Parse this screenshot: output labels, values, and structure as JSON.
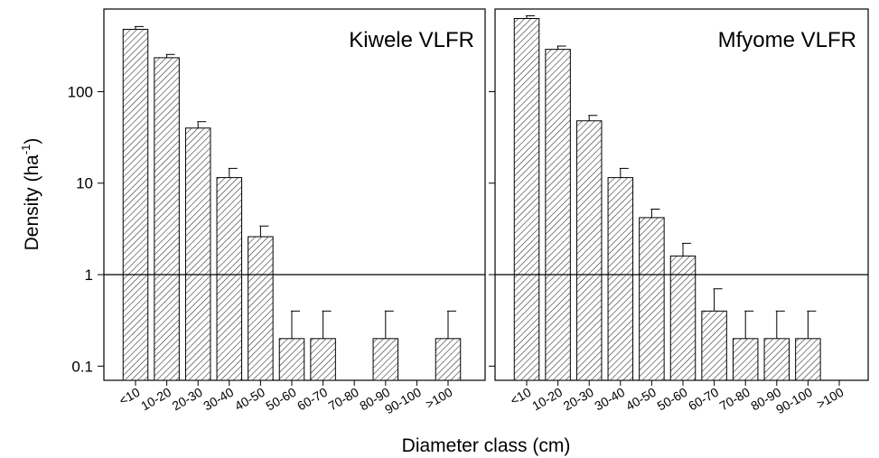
{
  "chart_data": {
    "type": "bar",
    "y_scale": "log",
    "ylim": [
      0.07,
      800
    ],
    "yticks": [
      {
        "value": 0.1,
        "label": "0.1"
      },
      {
        "value": 1,
        "label": "1"
      },
      {
        "value": 10,
        "label": "10"
      },
      {
        "value": 100,
        "label": "100"
      }
    ],
    "reference_line": 1,
    "ylabel": {
      "text": "Density (ha",
      "sup": "-1",
      "end": ")"
    },
    "xlabel": "Diameter class (cm)",
    "categories": [
      "<10",
      "10-20",
      "20-30",
      "30-40",
      "40-50",
      "50-60",
      "60-70",
      "70-80",
      "80-90",
      "90-100",
      ">100"
    ],
    "fill_pattern": "diagonal-hatch",
    "panels": [
      {
        "title": "Kiwele VLFR",
        "values": [
          480,
          235,
          40,
          11.5,
          2.6,
          0.2,
          0.2,
          null,
          0.2,
          null,
          0.2
        ],
        "errors": [
          515,
          255,
          47,
          14.5,
          3.4,
          0.4,
          0.4,
          null,
          0.4,
          null,
          0.4
        ]
      },
      {
        "title": "Mfyome VLFR",
        "values": [
          630,
          290,
          48,
          11.5,
          4.2,
          1.6,
          0.4,
          0.2,
          0.2,
          0.2,
          null
        ],
        "errors": [
          675,
          315,
          55,
          14.5,
          5.2,
          2.2,
          0.7,
          0.4,
          0.4,
          0.4,
          null
        ]
      }
    ]
  }
}
